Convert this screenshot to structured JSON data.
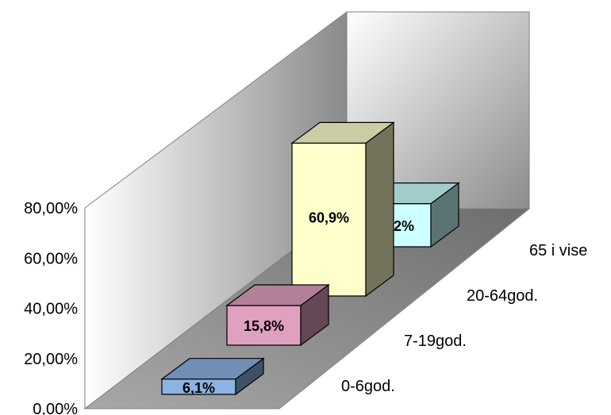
{
  "chart_data": {
    "type": "bar",
    "categories": [
      "0-6god.",
      "7-19god.",
      "20-64god.",
      "65 i vise"
    ],
    "values": [
      6.1,
      15.8,
      60.9,
      17.2
    ],
    "data_labels": [
      "6,1%",
      "15,8%",
      "60,9%",
      "17,2%"
    ],
    "y_ticks": [
      "0,00%",
      "20,00%",
      "40,00%",
      "60,00%",
      "80,00%"
    ],
    "ylim": [
      0,
      80
    ],
    "colors": [
      "#8DB3E2",
      "#E0A0C0",
      "#FFFFCC",
      "#CCFFFF"
    ],
    "legend": "none",
    "grid": false
  }
}
